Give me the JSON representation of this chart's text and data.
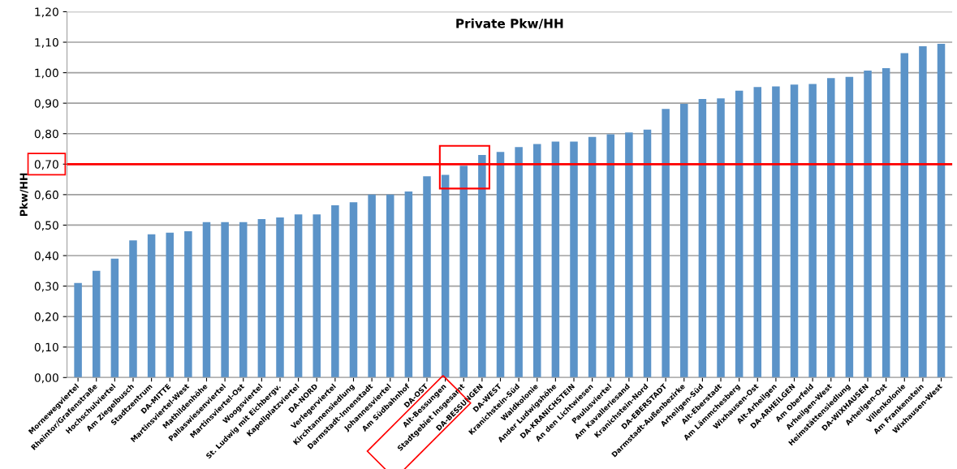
{
  "chart_data": {
    "type": "bar",
    "title": "Private Pkw/HH",
    "ylabel": "Pkw/HH",
    "categories": [
      "Mornewegviertel",
      "Rheintor/Grafenstraße",
      "Hochschulviertel",
      "Am Ziegelbusch",
      "Stadtzentrum",
      "DA-MITTE",
      "Martinsviertel-West",
      "Mathildenhöhe",
      "Pallaswiesenviertel",
      "Martinsviertel-Ost",
      "Woogsviertel",
      "St. Ludwig mit Eichbergv.",
      "Kapellplatzviertel",
      "DA-NORD",
      "Verlegerviertel",
      "Kirchtannensiedlung",
      "Darmstadt-Innenstadt",
      "Johannesviertel",
      "Am Südbahnhof",
      "DA-OST",
      "Alt-Bessungen",
      "Stadtgebiet Insgesamt",
      "DA-BESSUNGEN",
      "DA-WEST",
      "Kranichstein-Süd",
      "Waldkolonie",
      "Ander Ludwigshöhe",
      "DA-KRANICHSTEIN",
      "An den Lichtwiesen",
      "Paulusviertel",
      "Am Kavalleriesand",
      "Kranichstein-Nord",
      "DA-EBERSTADT",
      "Darmstadt-Außenbezirke",
      "Arheilgen-Süd",
      "Alt-Eberstadt",
      "Am Lämmchesberg",
      "Wixhausen-Ost",
      "Alt-Arheilgen",
      "DA-ARHEILGEN",
      "Am Oberfeld",
      "Arheilgen-West",
      "Heimstättensiedlung",
      "DA-WIXHAUSEN",
      "Arheilgen-Ost",
      "Villenkolonie",
      "Am Frankenstein",
      "Wixhausen-West"
    ],
    "values": [
      0.31,
      0.35,
      0.39,
      0.45,
      0.47,
      0.475,
      0.48,
      0.51,
      0.51,
      0.51,
      0.52,
      0.525,
      0.535,
      0.535,
      0.565,
      0.575,
      0.6,
      0.6,
      0.61,
      0.66,
      0.665,
      0.695,
      0.73,
      0.74,
      0.756,
      0.766,
      0.774,
      0.774,
      0.789,
      0.798,
      0.804,
      0.813,
      0.881,
      0.898,
      0.914,
      0.916,
      0.941,
      0.953,
      0.955,
      0.961,
      0.963,
      0.982,
      0.986,
      1.007,
      1.015,
      1.064,
      1.087,
      1.095
    ],
    "color": "#5b93c8",
    "ylim": [
      0,
      1.2
    ],
    "yticks": [
      {
        "value": 0,
        "label": "0,00"
      },
      {
        "value": 0.1,
        "label": "0,10"
      },
      {
        "value": 0.2,
        "label": "0,20"
      },
      {
        "value": 0.3,
        "label": "0,30"
      },
      {
        "value": 0.4,
        "label": "0,40"
      },
      {
        "value": 0.5,
        "label": "0,50"
      },
      {
        "value": 0.6,
        "label": "0,60"
      },
      {
        "value": 0.7,
        "label": "0,70"
      },
      {
        "value": 0.8,
        "label": "0,80"
      },
      {
        "value": 0.9,
        "label": "0,90"
      },
      {
        "value": 1.0,
        "label": "1,00"
      },
      {
        "value": 1.1,
        "label": "1,10"
      },
      {
        "value": 1.2,
        "label": "1,20"
      }
    ],
    "grid": "y",
    "ref_lines": [
      {
        "axis": "y",
        "value": 0.7,
        "color": "#ff0000"
      }
    ]
  }
}
